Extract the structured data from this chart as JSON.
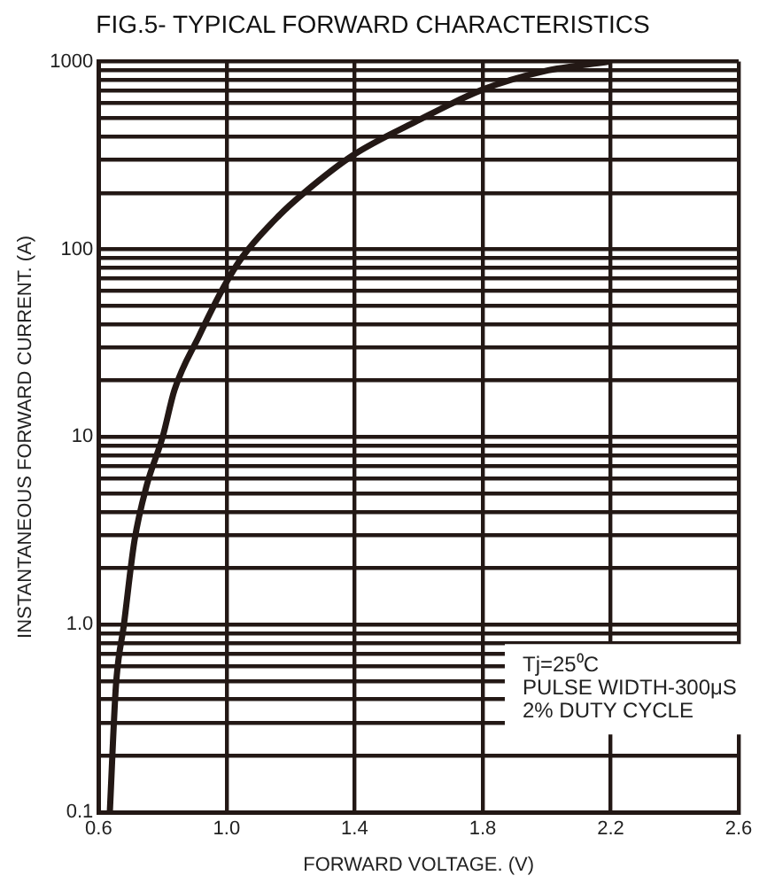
{
  "chart_data": {
    "type": "line",
    "title": "FIG.5- TYPICAL FORWARD CHARACTERISTICS",
    "xlabel": "FORWARD VOLTAGE. (V)",
    "ylabel": "INSTANTANEOUS FORWARD CURRENT. (A)",
    "x": [
      0.635,
      0.654,
      0.679,
      0.712,
      0.75,
      0.8,
      0.837,
      0.914,
      0.991,
      1.049,
      1.165,
      1.242,
      1.396,
      1.588,
      1.8,
      1.993,
      2.195
    ],
    "series": [
      {
        "color": "#231815",
        "values": [
          0.1,
          0.47,
          1.0,
          2.8,
          5.5,
          10,
          17.8,
          34.6,
          63,
          91,
          152,
          200,
          318,
          476,
          710,
          890,
          1000
        ]
      }
    ],
    "xlim": [
      0.6,
      2.6
    ],
    "xticks": [
      0.6,
      {
        "value": 1,
        "label": "1.0"
      },
      1.4,
      1.8,
      2.2,
      2.6
    ],
    "ylim": [
      0.1,
      1000
    ],
    "log": "y",
    "yticks": [
      {
        "value": 0.1,
        "label": "0.1"
      },
      {
        "value": 0.2,
        "label": null
      },
      {
        "value": 0.3,
        "label": null
      },
      {
        "value": 0.4,
        "label": null
      },
      {
        "value": 0.5,
        "label": null
      },
      {
        "value": 0.6,
        "label": null
      },
      {
        "value": 0.7,
        "label": null
      },
      {
        "value": 0.8,
        "label": null
      },
      {
        "value": 0.9,
        "label": null
      },
      {
        "value": 1,
        "label": "1.0"
      },
      {
        "value": 2,
        "label": null
      },
      {
        "value": 3,
        "label": null
      },
      {
        "value": 4,
        "label": null
      },
      {
        "value": 5,
        "label": null
      },
      {
        "value": 6,
        "label": null
      },
      {
        "value": 7,
        "label": null
      },
      {
        "value": 8,
        "label": null
      },
      {
        "value": 9,
        "label": null
      },
      10,
      {
        "value": 20,
        "label": null
      },
      {
        "value": 30,
        "label": null
      },
      {
        "value": 40,
        "label": null
      },
      {
        "value": 50,
        "label": null
      },
      {
        "value": 60,
        "label": null
      },
      {
        "value": 70,
        "label": null
      },
      {
        "value": 80,
        "label": null
      },
      {
        "value": 90,
        "label": null
      },
      100,
      {
        "value": 200,
        "label": null
      },
      {
        "value": 300,
        "label": null
      },
      {
        "value": 400,
        "label": null
      },
      {
        "value": 500,
        "label": null
      },
      {
        "value": 600,
        "label": null
      },
      {
        "value": 700,
        "label": null
      },
      {
        "value": 800,
        "label": null
      },
      {
        "value": 900,
        "label": null
      },
      1000
    ],
    "grid": true,
    "legend": false,
    "marker": "none",
    "line_style": "solid",
    "annotations": [
      "Tj=25⁰C",
      "PULSE WIDTH-300μS",
      "2% DUTY CYCLE"
    ]
  }
}
